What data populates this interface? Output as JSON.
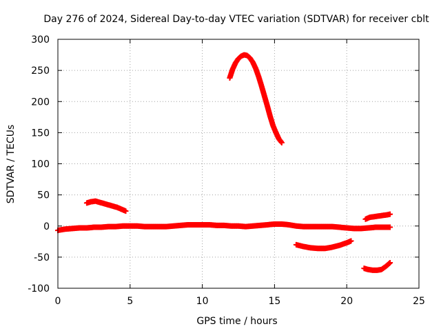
{
  "chart_data": {
    "type": "scatter",
    "title": "Day 276 of 2024, Sidereal Day-to-day VTEC variation (SDTVAR) for receiver cblt",
    "xlabel": "GPS time / hours",
    "ylabel": "SDTVAR / TECUs",
    "xlim": [
      0,
      25
    ],
    "ylim": [
      -100,
      300
    ],
    "xticks": [
      0,
      5,
      10,
      15,
      20,
      25
    ],
    "yticks": [
      -100,
      -50,
      0,
      50,
      100,
      150,
      200,
      250,
      300
    ],
    "grid": true,
    "marker": "plus",
    "color": "#ff0000",
    "series": [
      {
        "name": "baseline",
        "x": [
          0,
          0.5,
          1,
          1.5,
          2,
          2.5,
          3,
          3.5,
          4,
          4.5,
          5,
          5.5,
          6,
          6.5,
          7,
          7.5,
          8,
          8.5,
          9,
          9.5,
          10,
          10.5,
          11,
          11.5,
          12,
          12.5,
          13,
          13.5,
          14,
          14.5,
          15,
          15.5,
          16,
          16.5,
          17,
          17.5,
          18,
          18.5,
          19,
          19.5,
          20,
          20.5,
          21,
          21.5,
          22,
          22.5,
          23
        ],
        "y": [
          -7,
          -5,
          -4,
          -3,
          -3,
          -2,
          -2,
          -1,
          -1,
          0,
          0,
          0,
          -1,
          -1,
          -1,
          -1,
          0,
          1,
          2,
          2,
          2,
          2,
          1,
          1,
          0,
          0,
          -1,
          0,
          1,
          2,
          3,
          3,
          2,
          0,
          -1,
          -1,
          -1,
          -1,
          -1,
          -2,
          -3,
          -4,
          -4,
          -3,
          -2,
          -2,
          -2
        ]
      },
      {
        "name": "early-hump",
        "x": [
          2,
          2.3,
          2.6,
          2.9,
          3.2,
          3.5,
          3.8,
          4.1,
          4.4,
          4.7
        ],
        "y": [
          37,
          39,
          40,
          38,
          36,
          34,
          32,
          30,
          27,
          24
        ]
      },
      {
        "name": "large-peak",
        "x": [
          11.9,
          12.1,
          12.3,
          12.5,
          12.7,
          12.9,
          13.1,
          13.3,
          13.5,
          13.7,
          13.9,
          14.1,
          14.3,
          14.5,
          14.7,
          14.9,
          15.1,
          15.3,
          15.5
        ],
        "y": [
          238,
          252,
          262,
          269,
          273,
          275,
          274,
          270,
          263,
          253,
          240,
          225,
          209,
          193,
          176,
          161,
          150,
          140,
          134
        ]
      },
      {
        "name": "afternoon-dip",
        "x": [
          16.5,
          17,
          17.5,
          18,
          18.5,
          19,
          19.5,
          20,
          20.3
        ],
        "y": [
          -30,
          -33,
          -35,
          -36,
          -36,
          -34,
          -31,
          -27,
          -24
        ]
      },
      {
        "name": "late-positive",
        "x": [
          21.3,
          21.6,
          21.9,
          22.2,
          22.5,
          22.8,
          23
        ],
        "y": [
          11,
          14,
          15,
          16,
          17,
          18,
          19
        ]
      },
      {
        "name": "late-negative",
        "x": [
          21.2,
          21.5,
          21.8,
          22.1,
          22.4,
          22.7,
          23
        ],
        "y": [
          -68,
          -70,
          -71,
          -71,
          -70,
          -65,
          -59
        ]
      }
    ]
  }
}
